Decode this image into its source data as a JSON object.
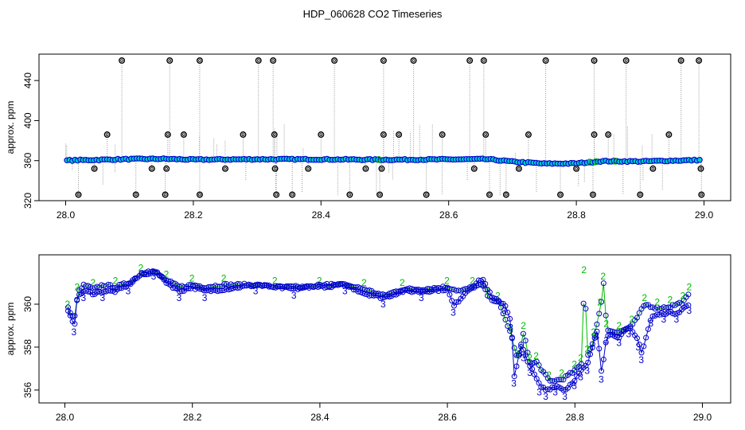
{
  "title": "HDP_060628  CO2 Timeseries",
  "colors": {
    "series_2": "#00bb00",
    "series_3": "#0000cc",
    "circle_fill": "#00cccc",
    "spike": "#999999",
    "outlier": "#000000"
  },
  "chart_data": [
    {
      "type": "scatter",
      "ylabel": "approx. ppm",
      "xlim": [
        28.0,
        29.0
      ],
      "ylim": [
        320,
        460
      ],
      "x_ticks": [
        "28.0",
        "28.2",
        "28.4",
        "28.6",
        "28.8",
        "29.0"
      ],
      "y_ticks": [
        "320",
        "360",
        "400",
        "440"
      ],
      "baseline": [
        [
          28.0,
          360.2
        ],
        [
          28.05,
          360.8
        ],
        [
          28.1,
          361.5
        ],
        [
          28.15,
          361.8
        ],
        [
          28.2,
          361.0
        ],
        [
          28.3,
          361.4
        ],
        [
          28.4,
          361.3
        ],
        [
          28.5,
          360.9
        ],
        [
          28.6,
          361.2
        ],
        [
          28.66,
          361.5
        ],
        [
          28.7,
          359.0
        ],
        [
          28.75,
          357.0
        ],
        [
          28.8,
          357.2
        ],
        [
          28.84,
          359.5
        ],
        [
          28.9,
          359.2
        ],
        [
          28.95,
          360.0
        ],
        [
          28.99,
          360.5
        ]
      ],
      "outliers_high": [
        28.088,
        28.163,
        28.21,
        28.302,
        28.325,
        28.421,
        28.498,
        28.545,
        28.633,
        28.655,
        28.752,
        28.828,
        28.878,
        28.964,
        28.992
      ],
      "outliers_mid": [
        28.065,
        28.16,
        28.185,
        28.278,
        28.327,
        28.4,
        28.498,
        28.522,
        28.59,
        28.658,
        28.725,
        28.828,
        28.85,
        28.945
      ],
      "outliers_low": [
        28.02,
        28.11,
        28.156,
        28.21,
        28.33,
        28.355,
        28.445,
        28.492,
        28.565,
        28.664,
        28.69,
        28.775,
        28.826,
        28.9,
        28.996
      ],
      "outliers_lowmid": [
        28.045,
        28.135,
        28.158,
        28.25,
        28.328,
        28.38,
        28.47,
        28.495,
        28.64,
        28.71,
        28.8,
        28.92,
        28.995
      ]
    },
    {
      "type": "line",
      "ylabel": "approx. ppm",
      "xlim": [
        28.0,
        29.0
      ],
      "ylim": [
        355.4,
        362.3
      ],
      "x_ticks": [
        "28.0",
        "28.2",
        "28.4",
        "28.6",
        "28.8",
        "29.0"
      ],
      "y_ticks": [
        "356",
        "358",
        "360"
      ],
      "series": [
        {
          "name": "2",
          "values": [
            [
              28.005,
              359.7
            ],
            [
              28.015,
              359.3
            ],
            [
              28.02,
              360.5
            ],
            [
              28.03,
              360.9
            ],
            [
              28.045,
              360.7
            ],
            [
              28.06,
              360.9
            ],
            [
              28.08,
              360.8
            ],
            [
              28.1,
              361.0
            ],
            [
              28.12,
              361.4
            ],
            [
              28.14,
              361.5
            ],
            [
              28.16,
              361.1
            ],
            [
              28.18,
              360.8
            ],
            [
              28.2,
              360.9
            ],
            [
              28.22,
              360.8
            ],
            [
              28.25,
              360.9
            ],
            [
              28.3,
              360.9
            ],
            [
              28.33,
              360.8
            ],
            [
              28.36,
              360.8
            ],
            [
              28.4,
              360.8
            ],
            [
              28.44,
              360.9
            ],
            [
              28.47,
              360.7
            ],
            [
              28.5,
              360.4
            ],
            [
              28.53,
              360.7
            ],
            [
              28.56,
              360.7
            ],
            [
              28.6,
              360.8
            ],
            [
              28.62,
              360.6
            ],
            [
              28.64,
              360.8
            ],
            [
              28.655,
              360.9
            ],
            [
              28.665,
              360.3
            ],
            [
              28.68,
              360.1
            ],
            [
              28.7,
              358.6
            ],
            [
              28.71,
              357.4
            ],
            [
              28.72,
              358.7
            ],
            [
              28.73,
              357.2
            ],
            [
              28.74,
              357.3
            ],
            [
              28.76,
              356.4
            ],
            [
              28.78,
              356.5
            ],
            [
              28.8,
              356.9
            ],
            [
              28.81,
              357.2
            ],
            [
              28.815,
              361.3
            ],
            [
              28.82,
              357.6
            ],
            [
              28.83,
              358.4
            ],
            [
              28.84,
              359.8
            ],
            [
              28.845,
              361.0
            ],
            [
              28.85,
              358.8
            ],
            [
              28.87,
              358.7
            ],
            [
              28.89,
              359.0
            ],
            [
              28.91,
              360.0
            ],
            [
              28.93,
              359.8
            ],
            [
              28.95,
              359.9
            ],
            [
              28.97,
              360.1
            ],
            [
              28.98,
              360.5
            ]
          ]
        },
        {
          "name": "3",
          "values": [
            [
              28.005,
              359.8
            ],
            [
              28.015,
              359.0
            ],
            [
              28.02,
              360.4
            ],
            [
              28.03,
              360.6
            ],
            [
              28.045,
              360.5
            ],
            [
              28.06,
              360.6
            ],
            [
              28.08,
              360.6
            ],
            [
              28.1,
              360.9
            ],
            [
              28.12,
              361.4
            ],
            [
              28.14,
              361.6
            ],
            [
              28.16,
              361.0
            ],
            [
              28.18,
              360.6
            ],
            [
              28.2,
              360.8
            ],
            [
              28.22,
              360.6
            ],
            [
              28.25,
              360.7
            ],
            [
              28.3,
              360.9
            ],
            [
              28.33,
              360.8
            ],
            [
              28.36,
              360.7
            ],
            [
              28.4,
              360.9
            ],
            [
              28.44,
              360.9
            ],
            [
              28.47,
              360.5
            ],
            [
              28.5,
              360.3
            ],
            [
              28.53,
              360.6
            ],
            [
              28.56,
              360.6
            ],
            [
              28.6,
              360.7
            ],
            [
              28.61,
              359.9
            ],
            [
              28.63,
              360.6
            ],
            [
              28.655,
              361.2
            ],
            [
              28.67,
              360.3
            ],
            [
              28.69,
              360.0
            ],
            [
              28.7,
              359.2
            ],
            [
              28.705,
              356.6
            ],
            [
              28.715,
              358.0
            ],
            [
              28.72,
              357.8
            ],
            [
              28.73,
              357.1
            ],
            [
              28.745,
              356.2
            ],
            [
              28.755,
              356.0
            ],
            [
              28.77,
              356.2
            ],
            [
              28.785,
              356.0
            ],
            [
              28.8,
              356.5
            ],
            [
              28.81,
              356.9
            ],
            [
              28.82,
              357.2
            ],
            [
              28.835,
              358.8
            ],
            [
              28.842,
              356.8
            ],
            [
              28.85,
              358.6
            ],
            [
              28.87,
              358.5
            ],
            [
              28.885,
              358.9
            ],
            [
              28.9,
              358.3
            ],
            [
              28.905,
              357.7
            ],
            [
              28.92,
              359.4
            ],
            [
              28.94,
              359.6
            ],
            [
              28.96,
              359.6
            ],
            [
              28.98,
              360.0
            ]
          ]
        }
      ]
    }
  ]
}
